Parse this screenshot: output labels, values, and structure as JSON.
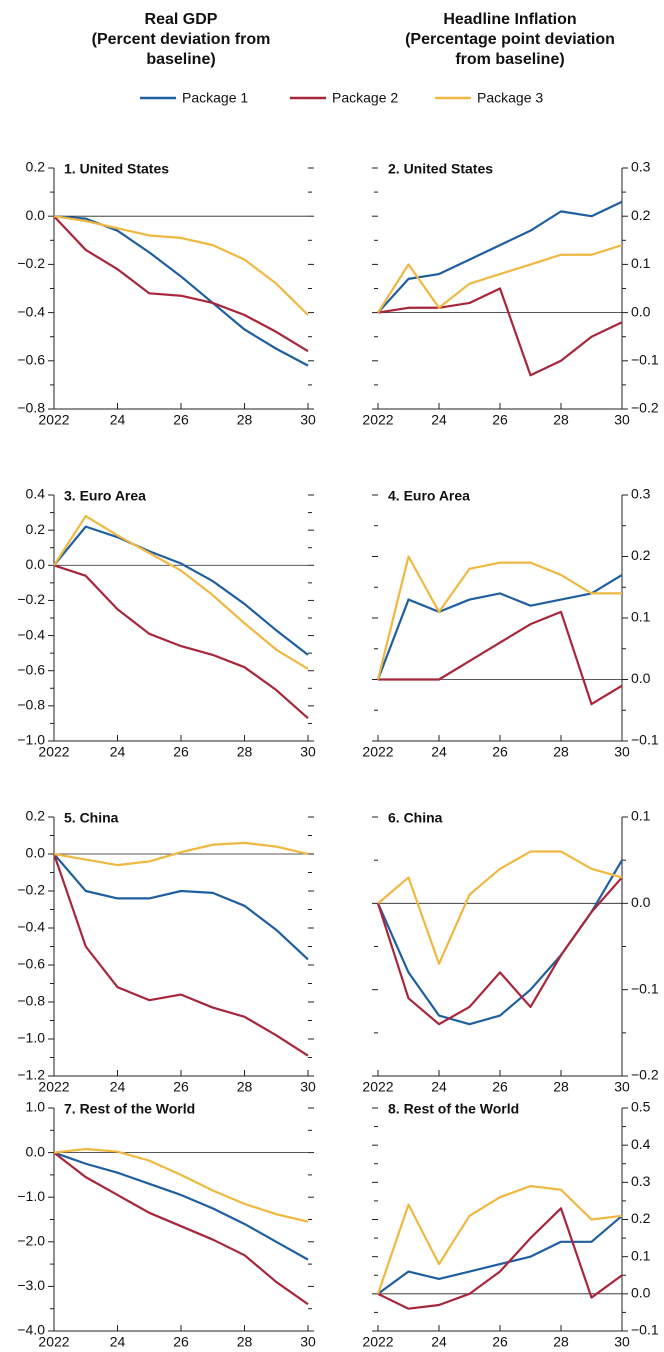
{
  "column_titles": [
    [
      "Real GDP",
      "(Percent deviation from",
      "baseline)"
    ],
    [
      "Headline Inflation",
      "(Percentage point deviation",
      "from baseline)"
    ]
  ],
  "legend": [
    {
      "name": "Package 1",
      "color": "#1f5fa0"
    },
    {
      "name": "Package 2",
      "color": "#a8263b"
    },
    {
      "name": "Package 3",
      "color": "#f0b840"
    }
  ],
  "chart_data": [
    {
      "type": "line",
      "title": "1. United States",
      "yaxis": "left",
      "x": [
        2022,
        2023,
        2024,
        2025,
        2026,
        2027,
        2028,
        2029,
        2030
      ],
      "xticks": [
        2022,
        {
          "value": 2024,
          "label": "24"
        },
        {
          "value": 2026,
          "label": "26"
        },
        {
          "value": 2028,
          "label": "28"
        },
        {
          "value": 2030,
          "label": "30"
        }
      ],
      "ylim": [
        -0.8,
        0.2
      ],
      "yticks": [
        0.2,
        {
          "value": 0,
          "label": "0.0"
        },
        {
          "value": -0.2,
          "label": "−0.2"
        },
        {
          "value": -0.4,
          "label": "−0.4"
        },
        {
          "value": -0.6,
          "label": "−0.6"
        },
        {
          "value": -0.8,
          "label": "−0.8"
        }
      ],
      "yminorticks": [
        0.1,
        -0.1,
        -0.3,
        -0.5,
        -0.7
      ],
      "series": [
        {
          "values": [
            0,
            -0.01,
            -0.06,
            -0.15,
            -0.25,
            -0.36,
            -0.47,
            -0.55,
            -0.62
          ]
        },
        {
          "values": [
            0,
            -0.14,
            -0.22,
            -0.32,
            -0.33,
            -0.36,
            -0.41,
            -0.48,
            -0.56
          ]
        },
        {
          "values": [
            0,
            -0.02,
            -0.05,
            -0.08,
            -0.09,
            -0.12,
            -0.18,
            -0.28,
            -0.41
          ]
        }
      ]
    },
    {
      "type": "line",
      "title": "2. United States",
      "yaxis": "right",
      "x": [
        2022,
        2023,
        2024,
        2025,
        2026,
        2027,
        2028,
        2029,
        2030
      ],
      "xticks": [
        2022,
        {
          "value": 2024,
          "label": "24"
        },
        {
          "value": 2026,
          "label": "26"
        },
        {
          "value": 2028,
          "label": "28"
        },
        {
          "value": 2030,
          "label": "30"
        }
      ],
      "ylim": [
        -0.2,
        0.3
      ],
      "yticks": [
        0.3,
        0.2,
        0.1,
        {
          "value": 0,
          "label": "0.0"
        },
        {
          "value": -0.1,
          "label": "−0.1"
        },
        {
          "value": -0.2,
          "label": "−0.2"
        }
      ],
      "yminorticks": [
        0.25,
        0.15,
        0.05,
        -0.05,
        -0.15
      ],
      "series": [
        {
          "values": [
            0,
            0.07,
            0.08,
            0.11,
            0.14,
            0.17,
            0.21,
            0.2,
            0.23
          ]
        },
        {
          "values": [
            0,
            0.01,
            0.01,
            0.02,
            0.05,
            -0.13,
            -0.1,
            -0.05,
            -0.02
          ]
        },
        {
          "values": [
            0,
            0.1,
            0.01,
            0.06,
            0.08,
            0.1,
            0.12,
            0.12,
            0.14
          ]
        }
      ]
    },
    {
      "type": "line",
      "title": "3. Euro Area",
      "yaxis": "left",
      "x": [
        2022,
        2023,
        2024,
        2025,
        2026,
        2027,
        2028,
        2029,
        2030
      ],
      "xticks": [
        2022,
        {
          "value": 2024,
          "label": "24"
        },
        {
          "value": 2026,
          "label": "26"
        },
        {
          "value": 2028,
          "label": "28"
        },
        {
          "value": 2030,
          "label": "30"
        }
      ],
      "ylim": [
        -1.0,
        0.4
      ],
      "yticks": [
        0.4,
        0.2,
        {
          "value": 0,
          "label": "0.0"
        },
        {
          "value": -0.2,
          "label": "−0.2"
        },
        {
          "value": -0.4,
          "label": "−0.4"
        },
        {
          "value": -0.6,
          "label": "−0.6"
        },
        {
          "value": -0.8,
          "label": "−0.8"
        },
        {
          "value": -1.0,
          "label": "−1.0"
        }
      ],
      "yminorticks": [
        0.3,
        0.1,
        -0.1,
        -0.3,
        -0.5,
        -0.7,
        -0.9
      ],
      "series": [
        {
          "values": [
            0,
            0.22,
            0.16,
            0.08,
            0.01,
            -0.09,
            -0.22,
            -0.37,
            -0.51
          ]
        },
        {
          "values": [
            0,
            -0.06,
            -0.25,
            -0.39,
            -0.46,
            -0.51,
            -0.58,
            -0.71,
            -0.87
          ]
        },
        {
          "values": [
            0,
            0.28,
            0.17,
            0.07,
            -0.03,
            -0.17,
            -0.33,
            -0.48,
            -0.59
          ]
        }
      ]
    },
    {
      "type": "line",
      "title": "4. Euro Area",
      "yaxis": "right",
      "x": [
        2022,
        2023,
        2024,
        2025,
        2026,
        2027,
        2028,
        2029,
        2030
      ],
      "xticks": [
        2022,
        {
          "value": 2024,
          "label": "24"
        },
        {
          "value": 2026,
          "label": "26"
        },
        {
          "value": 2028,
          "label": "28"
        },
        {
          "value": 2030,
          "label": "30"
        }
      ],
      "ylim": [
        -0.1,
        0.3
      ],
      "yticks": [
        0.3,
        0.2,
        0.1,
        {
          "value": 0,
          "label": "0.0"
        },
        {
          "value": -0.1,
          "label": "−0.1"
        }
      ],
      "yminorticks": [
        0.25,
        0.15,
        0.05,
        -0.05
      ],
      "series": [
        {
          "values": [
            0,
            0.13,
            0.11,
            0.13,
            0.14,
            0.12,
            0.13,
            0.14,
            0.17
          ]
        },
        {
          "values": [
            0,
            0,
            0,
            0.03,
            0.06,
            0.09,
            0.11,
            -0.04,
            -0.01
          ]
        },
        {
          "values": [
            0,
            0.2,
            0.11,
            0.18,
            0.19,
            0.19,
            0.17,
            0.14,
            0.14
          ]
        }
      ]
    },
    {
      "type": "line",
      "title": "5. China",
      "yaxis": "left",
      "x": [
        2022,
        2023,
        2024,
        2025,
        2026,
        2027,
        2028,
        2029,
        2030
      ],
      "xticks": [
        2022,
        {
          "value": 2024,
          "label": "24"
        },
        {
          "value": 2026,
          "label": "26"
        },
        {
          "value": 2028,
          "label": "28"
        },
        {
          "value": 2030,
          "label": "30"
        }
      ],
      "ylim": [
        -1.2,
        0.2
      ],
      "yticks": [
        0.2,
        {
          "value": 0,
          "label": "0.0"
        },
        {
          "value": -0.2,
          "label": "−0.2"
        },
        {
          "value": -0.4,
          "label": "−0.4"
        },
        {
          "value": -0.6,
          "label": "−0.6"
        },
        {
          "value": -0.8,
          "label": "−0.8"
        },
        {
          "value": -1.0,
          "label": "−1.0"
        },
        {
          "value": -1.2,
          "label": "−1.2"
        }
      ],
      "yminorticks": [
        0.1,
        -0.1,
        -0.3,
        -0.5,
        -0.7,
        -0.9,
        -1.1
      ],
      "series": [
        {
          "values": [
            0,
            -0.2,
            -0.24,
            -0.24,
            -0.2,
            -0.21,
            -0.28,
            -0.41,
            -0.57
          ]
        },
        {
          "values": [
            0,
            -0.5,
            -0.72,
            -0.79,
            -0.76,
            -0.83,
            -0.88,
            -0.98,
            -1.09
          ]
        },
        {
          "values": [
            0,
            -0.03,
            -0.06,
            -0.04,
            0.01,
            0.05,
            0.06,
            0.04,
            0
          ]
        }
      ]
    },
    {
      "type": "line",
      "title": "6. China",
      "yaxis": "right",
      "x": [
        2022,
        2023,
        2024,
        2025,
        2026,
        2027,
        2028,
        2029,
        2030
      ],
      "xticks": [
        2022,
        {
          "value": 2024,
          "label": "24"
        },
        {
          "value": 2026,
          "label": "26"
        },
        {
          "value": 2028,
          "label": "28"
        },
        {
          "value": 2030,
          "label": "30"
        }
      ],
      "ylim": [
        -0.2,
        0.1
      ],
      "yticks": [
        0.1,
        {
          "value": 0,
          "label": "0.0"
        },
        {
          "value": -0.1,
          "label": "−0.1"
        },
        {
          "value": -0.2,
          "label": "−0.2"
        }
      ],
      "yminorticks": [
        0.05,
        -0.05,
        -0.15
      ],
      "series": [
        {
          "values": [
            0,
            -0.08,
            -0.13,
            -0.14,
            -0.13,
            -0.1,
            -0.06,
            -0.01,
            0.05
          ]
        },
        {
          "values": [
            0,
            -0.11,
            -0.14,
            -0.12,
            -0.08,
            -0.12,
            -0.06,
            -0.01,
            0.03
          ]
        },
        {
          "values": [
            0,
            0.03,
            -0.07,
            0.01,
            0.04,
            0.06,
            0.06,
            0.04,
            0.03
          ]
        }
      ]
    },
    {
      "type": "line",
      "title": "7. Rest of the World",
      "yaxis": "left",
      "x": [
        2022,
        2023,
        2024,
        2025,
        2026,
        2027,
        2028,
        2029,
        2030
      ],
      "xticks": [
        2022,
        {
          "value": 2024,
          "label": "24"
        },
        {
          "value": 2026,
          "label": "26"
        },
        {
          "value": 2028,
          "label": "28"
        },
        {
          "value": 2030,
          "label": "30"
        }
      ],
      "ylim": [
        -4.0,
        1.0
      ],
      "yticks": [
        {
          "value": 1,
          "label": "1.0"
        },
        {
          "value": 0,
          "label": "0.0"
        },
        {
          "value": -1,
          "label": "−1.0"
        },
        {
          "value": -2,
          "label": "−2.0"
        },
        {
          "value": -3,
          "label": "−3.0"
        },
        {
          "value": -4,
          "label": "−4.0"
        }
      ],
      "yminorticks": [
        0.5,
        -0.5,
        -1.5,
        -2.5,
        -3.5
      ],
      "series": [
        {
          "values": [
            0,
            -0.25,
            -0.45,
            -0.7,
            -0.95,
            -1.25,
            -1.6,
            -2.0,
            -2.4
          ]
        },
        {
          "values": [
            0,
            -0.55,
            -0.95,
            -1.35,
            -1.65,
            -1.95,
            -2.3,
            -2.9,
            -3.4
          ]
        },
        {
          "values": [
            0,
            0.08,
            0.02,
            -0.18,
            -0.5,
            -0.85,
            -1.15,
            -1.38,
            -1.55
          ]
        }
      ]
    },
    {
      "type": "line",
      "title": "8. Rest of the World",
      "yaxis": "right",
      "x": [
        2022,
        2023,
        2024,
        2025,
        2026,
        2027,
        2028,
        2029,
        2030
      ],
      "xticks": [
        2022,
        {
          "value": 2024,
          "label": "24"
        },
        {
          "value": 2026,
          "label": "26"
        },
        {
          "value": 2028,
          "label": "28"
        },
        {
          "value": 2030,
          "label": "30"
        }
      ],
      "ylim": [
        -0.1,
        0.5
      ],
      "yticks": [
        0.5,
        0.4,
        0.3,
        0.2,
        0.1,
        {
          "value": 0,
          "label": "0.0"
        },
        {
          "value": -0.1,
          "label": "−0.1"
        }
      ],
      "yminorticks": [
        0.45,
        0.35,
        0.25,
        0.15,
        0.05,
        -0.05
      ],
      "series": [
        {
          "values": [
            0,
            0.06,
            0.04,
            0.06,
            0.08,
            0.1,
            0.14,
            0.14,
            0.21
          ]
        },
        {
          "values": [
            0,
            -0.04,
            -0.03,
            0,
            0.06,
            0.15,
            0.23,
            -0.01,
            0.05
          ]
        },
        {
          "values": [
            0,
            0.24,
            0.08,
            0.21,
            0.26,
            0.29,
            0.28,
            0.2,
            0.21
          ]
        }
      ]
    }
  ]
}
